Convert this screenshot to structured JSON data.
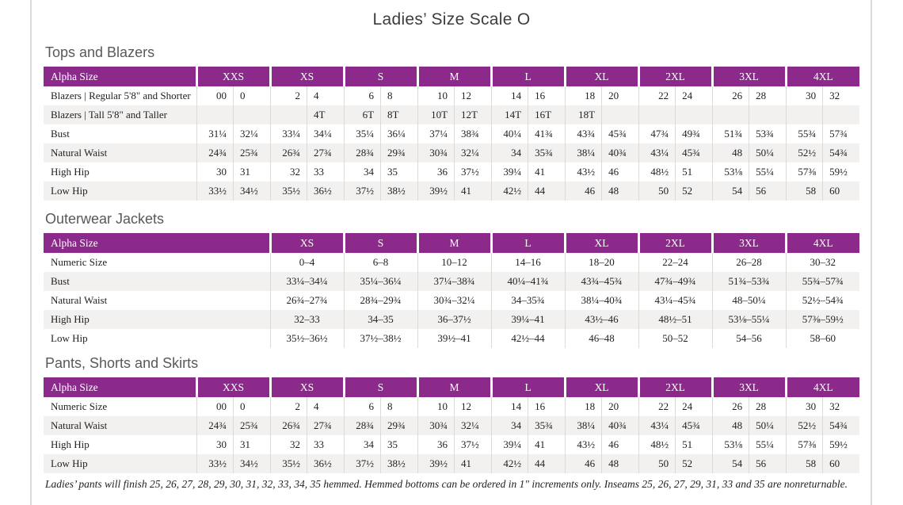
{
  "page": {
    "title": "Ladies’ Size Scale O",
    "footnote": "Ladies’ pants will finish 25, 26, 27, 28, 29, 30, 31, 32, 33, 34, 35 hemmed. Hemmed bottoms can be ordered in 1\" increments only. Inseams 25, 26, 27, 29, 31, 33 and 35 are nonreturnable."
  },
  "colors": {
    "header_purple": "#8c2a8c",
    "row_stripe": "#f2f1f0",
    "cell_divider": "#dcdad7",
    "page_edge": "#dadada",
    "title_text": "#3d3d3d",
    "heading_text": "#595959",
    "body_text": "#1f1f1f"
  },
  "tables": [
    {
      "name": "tops-and-blazers",
      "heading": "Tops and Blazers",
      "label_header": "Alpha Size",
      "sizes": [
        "XXS",
        "XS",
        "S",
        "M",
        "L",
        "XL",
        "2XL",
        "3XL",
        "4XL"
      ],
      "rows": [
        {
          "label": "Blazers | Regular 5'8\" and Shorter",
          "values": [
            "00",
            "0",
            "2",
            "4",
            "6",
            "8",
            "10",
            "12",
            "14",
            "16",
            "18",
            "20",
            "22",
            "24",
            "26",
            "28",
            "30",
            "32"
          ]
        },
        {
          "label": "Blazers | Tall 5'8\" and Taller",
          "values": [
            "",
            "",
            "",
            "4T",
            "6T",
            "8T",
            "10T",
            "12T",
            "14T",
            "16T",
            "18T",
            "",
            "",
            "",
            "",
            "",
            "",
            ""
          ]
        },
        {
          "label": "Bust",
          "values": [
            "31¼",
            "32¼",
            "33¼",
            "34¼",
            "35¼",
            "36¼",
            "37¼",
            "38¾",
            "40¼",
            "41¾",
            "43¾",
            "45¾",
            "47¾",
            "49¾",
            "51¾",
            "53¾",
            "55¾",
            "57¾"
          ]
        },
        {
          "label": "Natural Waist",
          "values": [
            "24¾",
            "25¾",
            "26¾",
            "27¾",
            "28¾",
            "29¾",
            "30¾",
            "32¼",
            "34",
            "35¾",
            "38¼",
            "40¾",
            "43¼",
            "45¾",
            "48",
            "50¼",
            "52½",
            "54¾"
          ]
        },
        {
          "label": "High Hip",
          "values": [
            "30",
            "31",
            "32",
            "33",
            "34",
            "35",
            "36",
            "37½",
            "39¼",
            "41",
            "43½",
            "46",
            "48½",
            "51",
            "53⅛",
            "55¼",
            "57⅜",
            "59½"
          ]
        },
        {
          "label": "Low Hip",
          "values": [
            "33½",
            "34½",
            "35½",
            "36½",
            "37½",
            "38½",
            "39½",
            "41",
            "42½",
            "44",
            "46",
            "48",
            "50",
            "52",
            "54",
            "56",
            "58",
            "60"
          ]
        }
      ]
    },
    {
      "name": "outerwear-jackets",
      "heading": "Outerwear Jackets",
      "label_header": "Alpha Size",
      "sizes": [
        "XS",
        "S",
        "M",
        "L",
        "XL",
        "2XL",
        "3XL",
        "4XL"
      ],
      "rows": [
        {
          "label": "Numeric Size",
          "values": [
            "0–4",
            "6–8",
            "10–12",
            "14–16",
            "18–20",
            "22–24",
            "26–28",
            "30–32"
          ]
        },
        {
          "label": "Bust",
          "values": [
            "33¼–34¼",
            "35¼–36¼",
            "37¼–38¾",
            "40¼–41¾",
            "43¾–45¾",
            "47¾–49¾",
            "51¾–53¾",
            "55¾–57¾"
          ]
        },
        {
          "label": "Natural Waist",
          "values": [
            "26¾–27¾",
            "28¾–29¾",
            "30¾–32¼",
            "34–35¾",
            "38¼–40¾",
            "43¼–45¾",
            "48–50¼",
            "52½–54¾"
          ]
        },
        {
          "label": "High Hip",
          "values": [
            "32–33",
            "34–35",
            "36–37½",
            "39¼–41",
            "43½–46",
            "48½–51",
            "53⅛–55¼",
            "57⅜–59½"
          ]
        },
        {
          "label": "Low Hip",
          "values": [
            "35½–36½",
            "37½–38½",
            "39½–41",
            "42½–44",
            "46–48",
            "50–52",
            "54–56",
            "58–60"
          ]
        }
      ]
    },
    {
      "name": "pants-shorts-and-skirts",
      "heading": "Pants, Shorts and Skirts",
      "label_header": "Alpha Size",
      "sizes": [
        "XXS",
        "XS",
        "S",
        "M",
        "L",
        "XL",
        "2XL",
        "3XL",
        "4XL"
      ],
      "rows": [
        {
          "label": "Numeric Size",
          "values": [
            "00",
            "0",
            "2",
            "4",
            "6",
            "8",
            "10",
            "12",
            "14",
            "16",
            "18",
            "20",
            "22",
            "24",
            "26",
            "28",
            "30",
            "32"
          ]
        },
        {
          "label": "Natural Waist",
          "values": [
            "24¾",
            "25¾",
            "26¾",
            "27¾",
            "28¾",
            "29¾",
            "30¾",
            "32¼",
            "34",
            "35¾",
            "38¼",
            "40¾",
            "43¼",
            "45¾",
            "48",
            "50¼",
            "52½",
            "54¾"
          ]
        },
        {
          "label": "High Hip",
          "values": [
            "30",
            "31",
            "32",
            "33",
            "34",
            "35",
            "36",
            "37½",
            "39¼",
            "41",
            "43½",
            "46",
            "48½",
            "51",
            "53⅛",
            "55¼",
            "57⅜",
            "59½"
          ]
        },
        {
          "label": "Low Hip",
          "values": [
            "33½",
            "34½",
            "35½",
            "36½",
            "37½",
            "38½",
            "39½",
            "41",
            "42½",
            "44",
            "46",
            "48",
            "50",
            "52",
            "54",
            "56",
            "58",
            "60"
          ]
        }
      ]
    }
  ]
}
